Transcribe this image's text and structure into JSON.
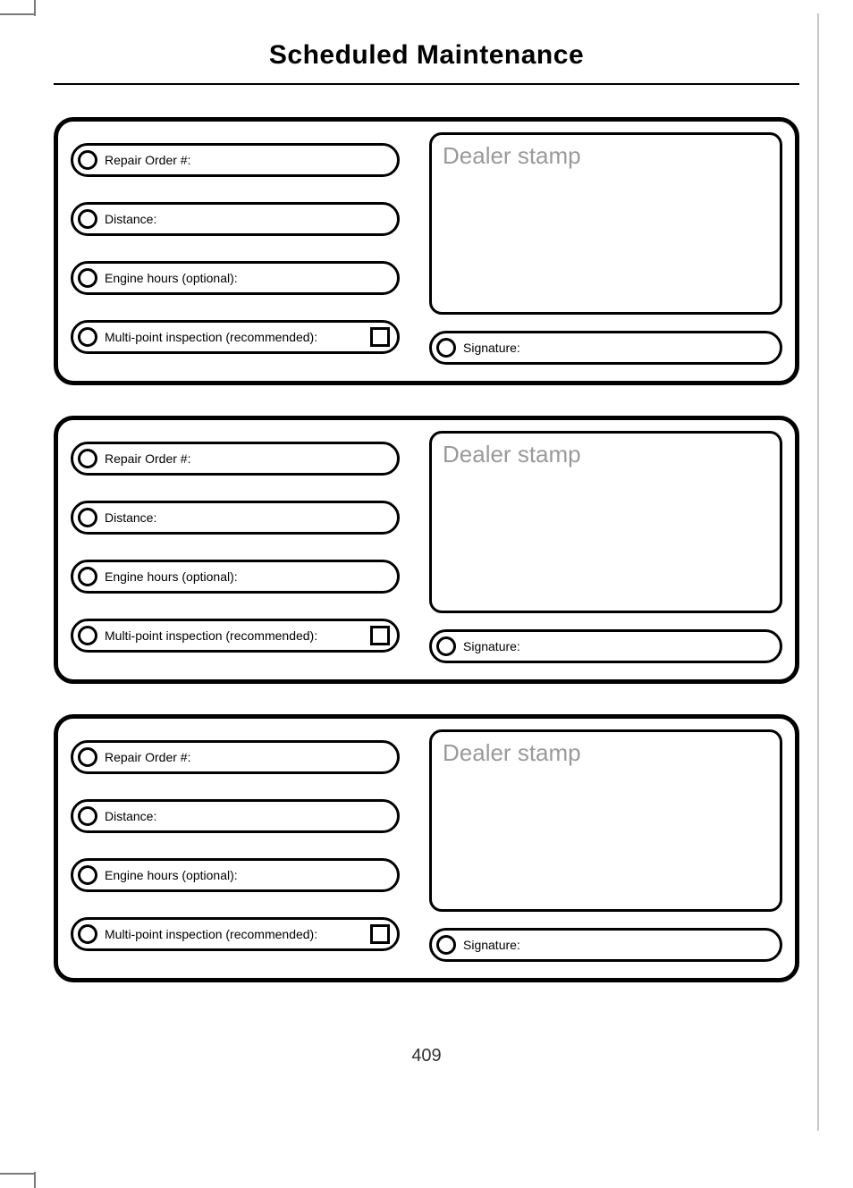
{
  "page_title": "Scheduled Maintenance",
  "page_number": "409",
  "colors": {
    "border": "#000000",
    "text": "#000000",
    "stamp_placeholder": "#9a9a9a",
    "background": "#ffffff"
  },
  "field_labels": {
    "repair_order": "Repair Order #:",
    "distance": "Distance:",
    "engine_hours": "Engine hours (optional):",
    "multipoint": "Multi-point inspection (recommended):",
    "signature": "Signature:",
    "dealer_stamp": "Dealer stamp"
  },
  "cards": [
    {
      "repair_order": "",
      "distance": "",
      "engine_hours": "",
      "multipoint_checked": false,
      "signature": "",
      "dealer_stamp": ""
    },
    {
      "repair_order": "",
      "distance": "",
      "engine_hours": "",
      "multipoint_checked": false,
      "signature": "",
      "dealer_stamp": ""
    },
    {
      "repair_order": "",
      "distance": "",
      "engine_hours": "",
      "multipoint_checked": false,
      "signature": "",
      "dealer_stamp": ""
    }
  ]
}
